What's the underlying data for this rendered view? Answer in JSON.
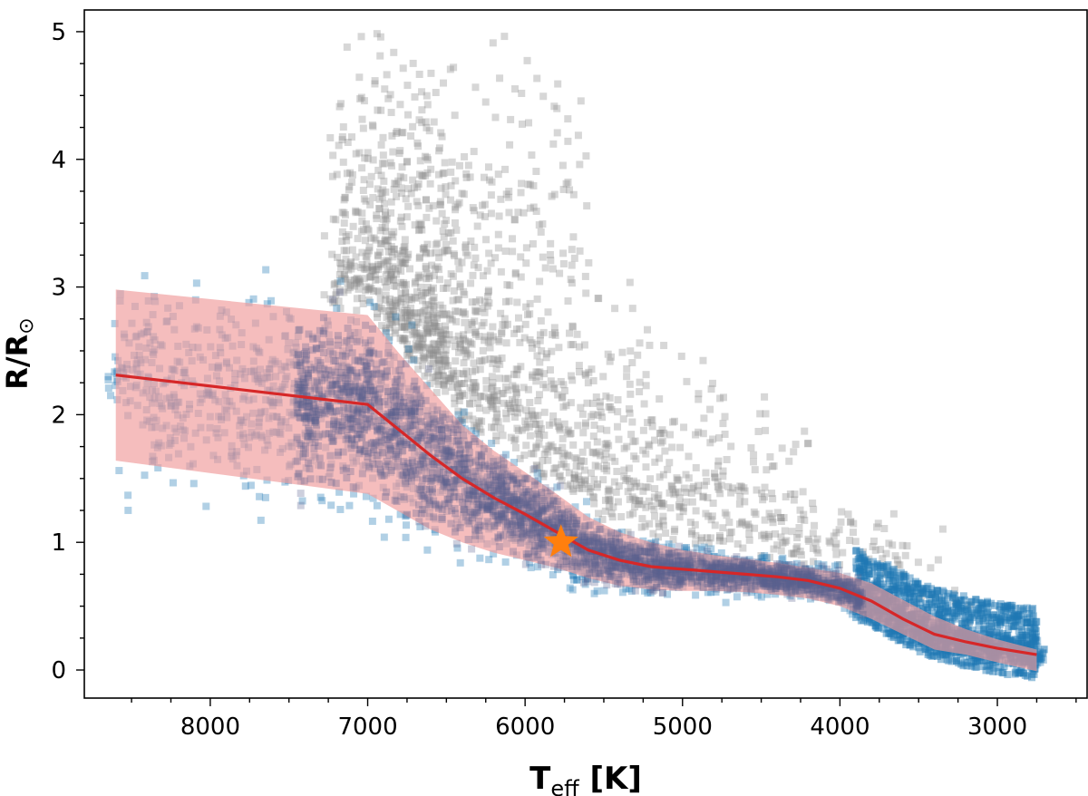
{
  "chart_data": {
    "type": "scatter",
    "title": "",
    "xlabel": {
      "main": "T",
      "sub": "eff",
      "unit": " [K]"
    },
    "ylabel": {
      "main": "R/R",
      "sub": "⊙"
    },
    "xlim": [
      8800,
      2430
    ],
    "ylim": [
      -0.22,
      5.17
    ],
    "x_inverted": true,
    "x_ticks": [
      8000,
      7000,
      6000,
      5000,
      4000,
      3000
    ],
    "y_ticks": [
      0,
      1,
      2,
      3,
      4,
      5
    ],
    "x_minor_step": 250,
    "y_minor_step": 0.25,
    "grid": false,
    "legend": "none",
    "colors": {
      "blue": "#1f77b4",
      "gray": "#8c8c8c",
      "red_line": "#d62728",
      "band": "#ef9a9a",
      "star": "#ff7f0e"
    },
    "relation": {
      "name": "",
      "x": [
        8600,
        7000,
        6800,
        6600,
        6400,
        6200,
        6000,
        5800,
        5600,
        5400,
        5200,
        5000,
        4800,
        4600,
        4400,
        4200,
        4000,
        3800,
        3600,
        3400,
        3200,
        3000,
        2750
      ],
      "y": [
        2.31,
        2.08,
        1.88,
        1.68,
        1.5,
        1.35,
        1.22,
        1.08,
        0.94,
        0.86,
        0.81,
        0.79,
        0.77,
        0.75,
        0.73,
        0.7,
        0.64,
        0.54,
        0.4,
        0.28,
        0.22,
        0.17,
        0.12
      ]
    },
    "band": {
      "x": [
        8600,
        7000,
        6800,
        6600,
        6400,
        6200,
        6000,
        5800,
        5600,
        5400,
        5200,
        5000,
        4800,
        4600,
        4400,
        4200,
        4000,
        3800,
        3600,
        3400,
        3200,
        3000,
        2750
      ],
      "upper": [
        2.98,
        2.78,
        2.48,
        2.2,
        1.92,
        1.72,
        1.55,
        1.38,
        1.2,
        1.08,
        1.0,
        0.94,
        0.9,
        0.87,
        0.84,
        0.8,
        0.76,
        0.68,
        0.55,
        0.42,
        0.32,
        0.24,
        0.16
      ],
      "lower": [
        1.64,
        1.38,
        1.24,
        1.1,
        1.0,
        0.92,
        0.86,
        0.8,
        0.72,
        0.66,
        0.63,
        0.62,
        0.62,
        0.61,
        0.59,
        0.56,
        0.5,
        0.4,
        0.28,
        0.16,
        0.12,
        0.06,
        -0.01
      ]
    },
    "sun": {
      "teff": 5772,
      "radius": 1.0
    }
  }
}
